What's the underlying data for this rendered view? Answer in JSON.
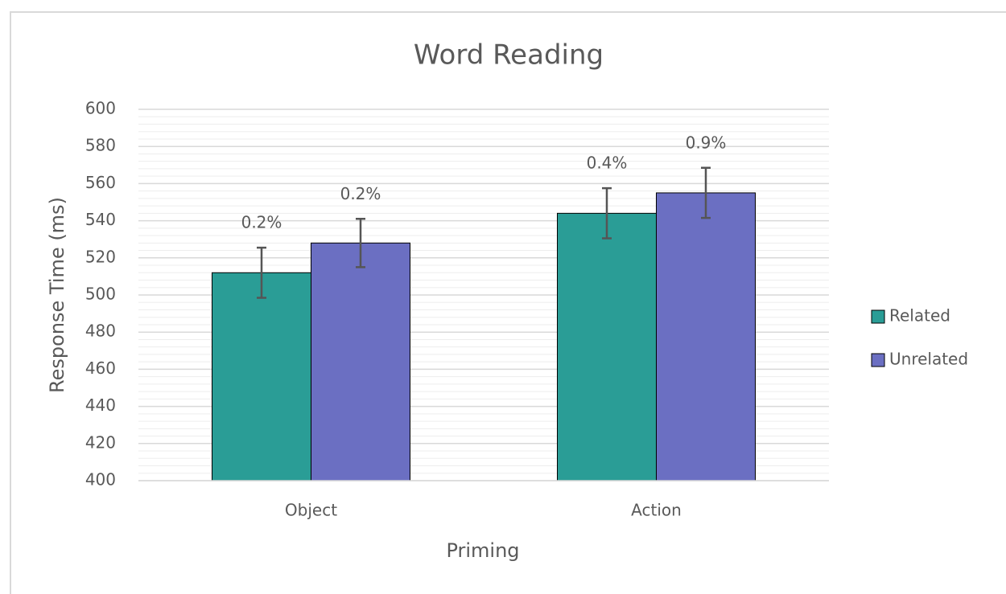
{
  "chart_data": {
    "type": "bar",
    "title": "Word Reading",
    "x_label": "Priming",
    "y_label": "Response Time (ms)",
    "categories": [
      "Object",
      "Action"
    ],
    "series": [
      {
        "name": "Related",
        "color": "#2a9d96",
        "values": [
          512,
          544
        ],
        "errors": [
          13.5,
          13.5
        ],
        "annotations": [
          "0.2%",
          "0.4%"
        ]
      },
      {
        "name": "Unrelated",
        "color": "#6b6fc2",
        "values": [
          528,
          555
        ],
        "errors": [
          13,
          13.5
        ],
        "annotations": [
          "0.2%",
          "0.9%"
        ]
      }
    ],
    "ylim": [
      400,
      600
    ],
    "yticks": [
      400,
      420,
      440,
      460,
      480,
      500,
      520,
      540,
      560,
      580,
      600
    ],
    "grid": true,
    "legend": "right"
  }
}
